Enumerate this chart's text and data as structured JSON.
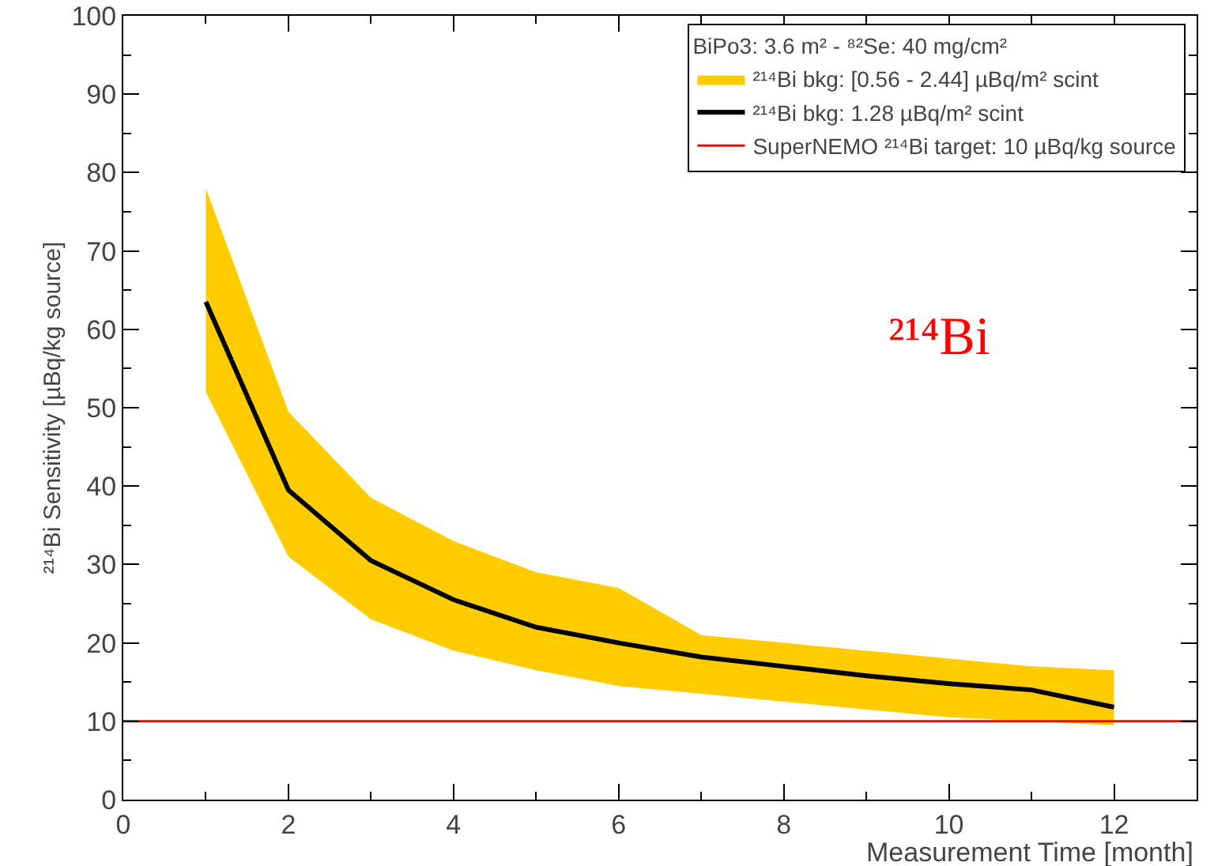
{
  "chart_data": {
    "type": "line",
    "xlabel": "Measurement Time [month]",
    "ylabel": "²¹⁴Bi Sensitivity [µBq/kg source]",
    "legend_title": "BiPo3: 3.6 m² - ⁸²Se: 40 mg/cm²",
    "x": [
      1,
      2,
      3,
      4,
      5,
      6,
      7,
      8,
      9,
      10,
      11,
      12
    ],
    "series": [
      {
        "type": "area",
        "name": "²¹⁴Bi bkg: [0.56 - 2.44] µBq/m² scint",
        "color": "#ffcc00",
        "values": [
          null,
          null,
          null,
          null,
          null,
          null,
          null,
          null,
          null,
          null,
          null,
          null
        ]
      },
      {
        "name": "²¹⁴Bi bkg: 1.28 µBq/m² scint",
        "color": "#000000",
        "values": [
          63.5,
          39.5,
          30.5,
          25.5,
          22,
          20,
          18.2,
          17,
          15.8,
          14.8,
          14,
          11.8
        ],
        "lower": [
          52,
          31,
          23,
          19,
          16.5,
          14.5,
          13.5,
          12.5,
          11.5,
          10.5,
          10,
          9.5
        ],
        "upper": [
          78,
          49.5,
          38.5,
          33,
          29,
          27,
          21,
          20,
          19,
          18,
          17,
          16.5
        ]
      }
    ],
    "ref_lines": [
      {
        "axis": "y",
        "value": 10,
        "label": "SuperNEMO ²¹⁴Bi target: 10 µBq/kg source",
        "color": "#ff0000"
      }
    ],
    "annotations": [
      "²¹⁴Bi"
    ],
    "xlim": [
      0,
      13
    ],
    "xticks": [
      0,
      2,
      4,
      6,
      8,
      10,
      12
    ],
    "ylim": [
      0,
      100
    ],
    "yticks": [
      0,
      10,
      20,
      30,
      40,
      50,
      60,
      70,
      80,
      90,
      100
    ],
    "grid": false,
    "legend": "top right",
    "marker": "none",
    "line_style": "solid"
  }
}
